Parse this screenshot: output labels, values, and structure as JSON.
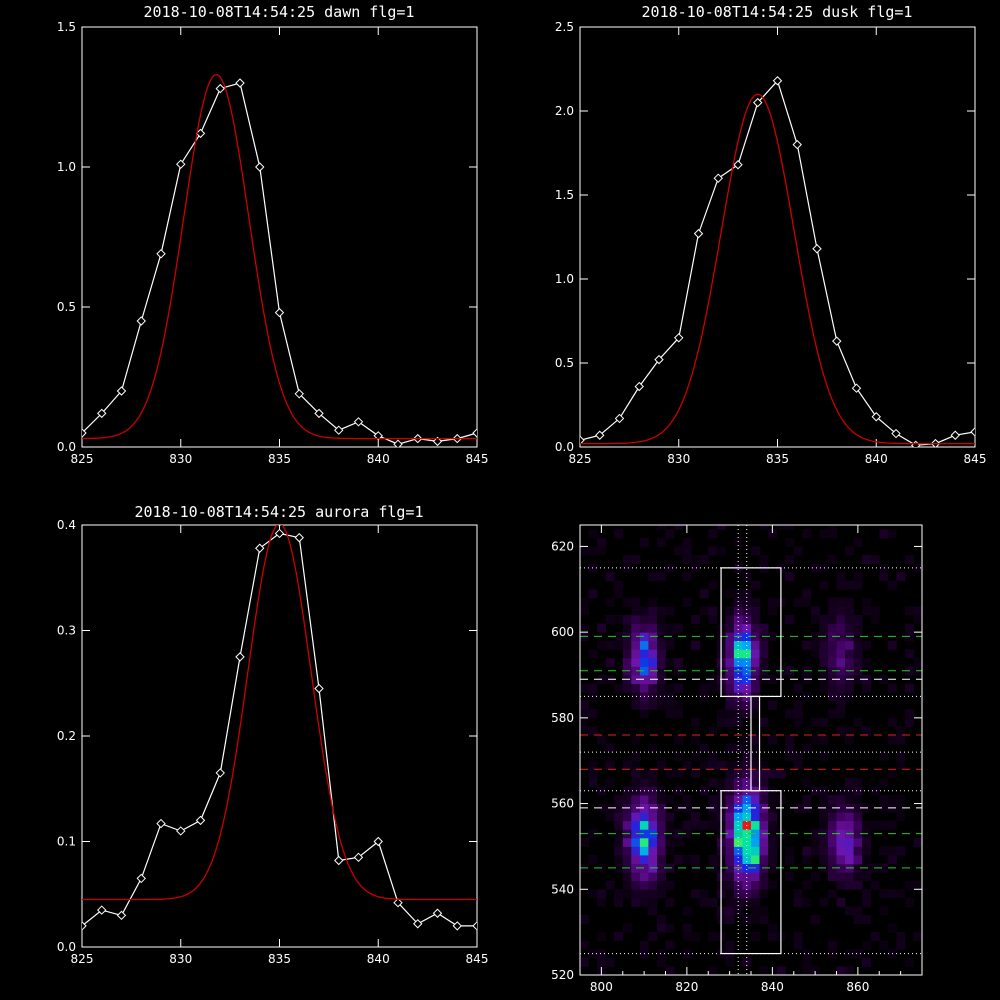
{
  "chart_data": [
    {
      "type": "line",
      "title": "2018-10-08T14:54:25 dawn flg=1",
      "xlim": [
        825,
        845
      ],
      "ylim": [
        0,
        1.5
      ],
      "xticks": [
        "825",
        "830",
        "835",
        "840",
        "845"
      ],
      "yticks": [
        "0.0",
        "0.5",
        "1.0",
        "1.5"
      ],
      "series": [
        {
          "marker": "diamond",
          "color": "#ffffff",
          "x": [
            825,
            826,
            827,
            828,
            829,
            830,
            831,
            832,
            833,
            834,
            835,
            836,
            837,
            838,
            839,
            840,
            841,
            842,
            843,
            844,
            845
          ],
          "y": [
            0.05,
            0.12,
            0.2,
            0.45,
            0.69,
            1.01,
            1.12,
            1.28,
            1.3,
            1.0,
            0.48,
            0.19,
            0.12,
            0.06,
            0.09,
            0.04,
            0.01,
            0.03,
            0.02,
            0.03,
            0.05
          ]
        },
        {
          "color": "#cc0000",
          "gaussian": {
            "amplitude": 1.3,
            "center": 831.8,
            "sigma": 1.65,
            "baseline": 0.03
          }
        }
      ]
    },
    {
      "type": "line",
      "title": "2018-10-08T14:54:25 dusk flg=1",
      "xlim": [
        825,
        845
      ],
      "ylim": [
        0,
        2.5
      ],
      "xticks": [
        "825",
        "830",
        "835",
        "840",
        "845"
      ],
      "yticks": [
        "0.0",
        "0.5",
        "1.0",
        "1.5",
        "2.0",
        "2.5"
      ],
      "series": [
        {
          "marker": "diamond",
          "color": "#ffffff",
          "x": [
            825,
            826,
            827,
            828,
            829,
            830,
            831,
            832,
            833,
            834,
            835,
            836,
            837,
            838,
            839,
            840,
            841,
            842,
            843,
            844,
            845
          ],
          "y": [
            0.04,
            0.07,
            0.17,
            0.36,
            0.52,
            0.65,
            1.27,
            1.6,
            1.68,
            2.05,
            2.18,
            1.8,
            1.18,
            0.63,
            0.35,
            0.18,
            0.08,
            0.01,
            0.02,
            0.07,
            0.09
          ]
        },
        {
          "color": "#cc0000",
          "gaussian": {
            "amplitude": 2.08,
            "center": 834.0,
            "sigma": 1.85,
            "baseline": 0.02
          }
        }
      ]
    },
    {
      "type": "line",
      "title": "2018-10-08T14:54:25 aurora flg=1",
      "xlim": [
        825,
        845
      ],
      "ylim": [
        0,
        0.4
      ],
      "xticks": [
        "825",
        "830",
        "835",
        "840",
        "845"
      ],
      "yticks": [
        "0.0",
        "0.1",
        "0.2",
        "0.3",
        "0.4"
      ],
      "series": [
        {
          "marker": "diamond",
          "color": "#ffffff",
          "x": [
            825,
            826,
            827,
            828,
            829,
            830,
            831,
            832,
            833,
            834,
            835,
            836,
            837,
            838,
            839,
            840,
            841,
            842,
            843,
            844,
            845
          ],
          "y": [
            0.02,
            0.035,
            0.03,
            0.065,
            0.117,
            0.11,
            0.12,
            0.165,
            0.275,
            0.378,
            0.392,
            0.388,
            0.245,
            0.082,
            0.085,
            0.1,
            0.042,
            0.022,
            0.032,
            0.02,
            0.02
          ]
        },
        {
          "color": "#cc0000",
          "gaussian": {
            "amplitude": 0.356,
            "center": 835.0,
            "sigma": 1.6,
            "baseline": 0.045
          }
        }
      ]
    },
    {
      "type": "heatmap",
      "xlim": [
        795,
        875
      ],
      "ylim": [
        520,
        625
      ],
      "xticks": [
        "800",
        "820",
        "840",
        "860"
      ],
      "yticks": [
        "520",
        "540",
        "560",
        "580",
        "600",
        "620"
      ],
      "blobs": [
        {
          "x": 810,
          "y": 594,
          "sx": 2.2,
          "sy": 5,
          "amp": 0.55
        },
        {
          "x": 833,
          "y": 594,
          "sx": 2.2,
          "sy": 6,
          "amp": 0.65
        },
        {
          "x": 810,
          "y": 552,
          "sx": 2.5,
          "sy": 6,
          "amp": 0.65
        },
        {
          "x": 834,
          "y": 553,
          "sx": 2.5,
          "sy": 7,
          "amp": 0.9
        },
        {
          "x": 835,
          "y": 548,
          "sx": 1.2,
          "sy": 2,
          "amp": 0.25
        },
        {
          "x": 857,
          "y": 551,
          "sx": 2.5,
          "sy": 5,
          "amp": 0.4
        },
        {
          "x": 856,
          "y": 596,
          "sx": 2.5,
          "sy": 6,
          "amp": 0.2
        }
      ],
      "overlays": {
        "boxes": [
          {
            "x": [
              828,
              842
            ],
            "y": [
              585,
              615
            ]
          },
          {
            "x": [
              828,
              842
            ],
            "y": [
              525,
              563
            ]
          }
        ],
        "connector": {
          "x": [
            835,
            837
          ],
          "y": [
            563,
            585
          ]
        },
        "dotted_vlines_x": [
          832,
          834
        ],
        "dotted_hlines_y": [
          615,
          585,
          572,
          563,
          525
        ],
        "dashed_lines": [
          {
            "y": 599,
            "color": "#22cc22"
          },
          {
            "y": 591,
            "color": "#22cc22"
          },
          {
            "y": 589,
            "color": "#ffffff"
          },
          {
            "y": 576,
            "color": "#dd2222"
          },
          {
            "y": 568,
            "color": "#dd2222"
          },
          {
            "y": 559,
            "color": "#ffffff"
          },
          {
            "y": 553,
            "color": "#22cc22"
          },
          {
            "y": 545,
            "color": "#22cc22"
          }
        ]
      }
    }
  ]
}
